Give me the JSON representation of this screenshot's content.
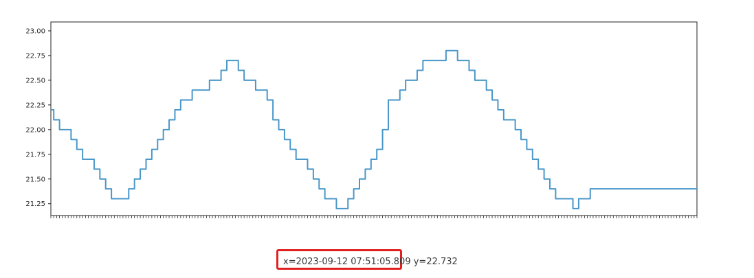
{
  "chart_data": {
    "type": "line",
    "title": "",
    "xlabel": "",
    "ylabel": "",
    "ylim": [
      21.13,
      23.09
    ],
    "yticks": [
      21.25,
      21.5,
      21.75,
      22.0,
      22.25,
      22.5,
      22.75,
      23.0
    ],
    "ytick_labels": [
      "21.25",
      "21.50",
      "21.75",
      "22.00",
      "22.25",
      "22.50",
      "22.75",
      "23.00"
    ],
    "xtick_count": 225,
    "grid": false,
    "legend": "none",
    "line_color": "#4a97c9",
    "x": [
      0,
      2,
      4,
      6,
      8,
      10,
      12,
      14,
      16,
      18,
      20,
      22,
      24,
      26,
      28,
      30,
      32,
      34,
      36,
      38,
      40,
      42,
      44,
      46,
      48,
      50,
      52,
      54,
      56,
      58,
      60,
      62,
      64,
      66,
      68,
      70,
      72,
      74,
      76,
      78,
      80,
      82,
      84,
      86,
      88,
      90,
      92,
      94,
      96,
      98,
      100,
      102,
      104,
      106,
      108,
      110,
      112,
      114,
      116,
      118,
      120,
      122,
      124,
      126,
      128,
      130,
      132,
      134,
      136,
      138,
      140,
      142,
      144,
      146,
      148,
      150,
      152,
      154,
      156,
      158,
      160,
      162,
      164,
      166,
      168,
      170,
      172,
      174,
      176,
      178,
      180,
      182,
      184,
      186,
      188,
      190,
      192,
      194,
      196,
      198,
      200,
      202,
      204,
      206,
      208,
      210,
      212,
      214,
      216,
      218,
      220,
      222,
      224
    ],
    "values": [
      22.2,
      22.1,
      22.0,
      22.0,
      21.9,
      21.8,
      21.7,
      21.7,
      21.6,
      21.5,
      21.4,
      21.3,
      21.3,
      21.3,
      21.4,
      21.5,
      21.6,
      21.7,
      21.8,
      21.9,
      22.0,
      22.1,
      22.2,
      22.3,
      22.3,
      22.4,
      22.4,
      22.4,
      22.5,
      22.5,
      22.6,
      22.7,
      22.7,
      22.6,
      22.5,
      22.5,
      22.4,
      22.4,
      22.3,
      22.1,
      22.0,
      21.9,
      21.8,
      21.7,
      21.7,
      21.6,
      21.5,
      21.4,
      21.3,
      21.3,
      21.2,
      21.2,
      21.3,
      21.4,
      21.5,
      21.6,
      21.7,
      21.8,
      22.0,
      22.3,
      22.3,
      22.4,
      22.5,
      22.5,
      22.6,
      22.7,
      22.7,
      22.7,
      22.7,
      22.8,
      22.8,
      22.7,
      22.7,
      22.6,
      22.5,
      22.5,
      22.4,
      22.3,
      22.2,
      22.1,
      22.1,
      22.0,
      21.9,
      21.8,
      21.7,
      21.6,
      21.5,
      21.4,
      21.3,
      21.3,
      21.3,
      21.2,
      21.3,
      21.3,
      21.4,
      21.4,
      21.4,
      21.4,
      21.4,
      21.4,
      21.4,
      21.4,
      21.4,
      21.4,
      21.4,
      21.4,
      21.4,
      21.4,
      21.4,
      21.4,
      21.4,
      21.4,
      21.4
    ]
  },
  "status": {
    "coords": "x=2023-09-12 07:51:05.809 y=22.732"
  }
}
